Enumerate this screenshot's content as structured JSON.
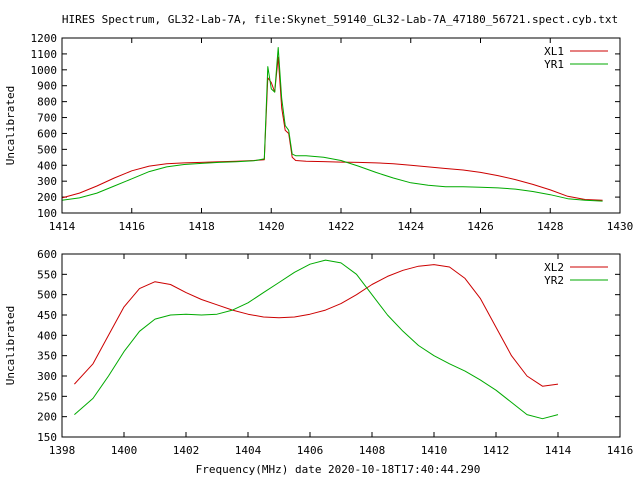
{
  "colors": {
    "red": "#cc0000",
    "green": "#00aa00",
    "axis": "#000000",
    "background": "#ffffff"
  },
  "title": "HIRES Spectrum, GL32-Lab-7A, file:Skynet_59140_GL32-Lab-7A_47180_56721.spect.cyb.txt",
  "footer": "Frequency(MHz) date 2020-10-18T17:40:44.290",
  "chart_data": [
    {
      "type": "line",
      "ylabel": "Uncalibrated",
      "xlim": [
        1414,
        1430
      ],
      "ylim": [
        100,
        1200
      ],
      "xticks": [
        1414,
        1416,
        1418,
        1420,
        1422,
        1424,
        1426,
        1428,
        1430
      ],
      "yticks": [
        100,
        200,
        300,
        400,
        500,
        600,
        700,
        800,
        900,
        1000,
        1100,
        1200
      ],
      "legend": "top-right",
      "series": [
        {
          "name": "XL1",
          "color": "red",
          "x": [
            1414.0,
            1414.5,
            1415.0,
            1415.5,
            1416.0,
            1416.5,
            1417.0,
            1417.5,
            1418.0,
            1418.5,
            1419.0,
            1419.5,
            1419.8,
            1419.9,
            1420.0,
            1420.1,
            1420.2,
            1420.3,
            1420.4,
            1420.5,
            1420.6,
            1420.7,
            1421.0,
            1421.5,
            1422.0,
            1422.5,
            1423.0,
            1423.5,
            1424.0,
            1424.5,
            1425.0,
            1425.5,
            1426.0,
            1426.5,
            1427.0,
            1427.5,
            1428.0,
            1428.5,
            1429.0,
            1429.5
          ],
          "y": [
            195,
            225,
            270,
            320,
            365,
            395,
            410,
            415,
            418,
            422,
            425,
            430,
            435,
            950,
            920,
            860,
            1080,
            760,
            620,
            600,
            450,
            430,
            425,
            423,
            420,
            418,
            415,
            410,
            400,
            390,
            380,
            370,
            355,
            335,
            310,
            280,
            245,
            205,
            185,
            180
          ]
        },
        {
          "name": "YR1",
          "color": "green",
          "x": [
            1414.0,
            1414.5,
            1415.0,
            1415.5,
            1416.0,
            1416.5,
            1417.0,
            1417.5,
            1418.0,
            1418.5,
            1419.0,
            1419.5,
            1419.8,
            1419.9,
            1420.0,
            1420.1,
            1420.2,
            1420.3,
            1420.4,
            1420.5,
            1420.6,
            1420.7,
            1421.0,
            1421.5,
            1422.0,
            1422.5,
            1423.0,
            1423.5,
            1424.0,
            1424.5,
            1425.0,
            1425.5,
            1426.0,
            1426.5,
            1427.0,
            1427.5,
            1428.0,
            1428.5,
            1429.0,
            1429.5
          ],
          "y": [
            180,
            195,
            225,
            270,
            315,
            360,
            390,
            405,
            412,
            418,
            422,
            428,
            440,
            1020,
            880,
            860,
            1140,
            820,
            650,
            620,
            470,
            460,
            460,
            450,
            430,
            395,
            355,
            320,
            290,
            275,
            265,
            265,
            262,
            258,
            250,
            235,
            215,
            190,
            180,
            175
          ]
        }
      ]
    },
    {
      "type": "line",
      "ylabel": "Uncalibrated",
      "xlim": [
        1398,
        1416
      ],
      "ylim": [
        150,
        600
      ],
      "xticks": [
        1398,
        1400,
        1402,
        1404,
        1406,
        1408,
        1410,
        1412,
        1414,
        1416
      ],
      "yticks": [
        150,
        200,
        250,
        300,
        350,
        400,
        450,
        500,
        550,
        600
      ],
      "legend": "top-right",
      "series": [
        {
          "name": "XL2",
          "color": "red",
          "x": [
            1398.4,
            1399.0,
            1399.5,
            1400.0,
            1400.5,
            1401.0,
            1401.5,
            1402.0,
            1402.5,
            1403.0,
            1403.5,
            1404.0,
            1404.5,
            1405.0,
            1405.5,
            1406.0,
            1406.5,
            1407.0,
            1407.5,
            1408.0,
            1408.5,
            1409.0,
            1409.5,
            1410.0,
            1410.5,
            1411.0,
            1411.5,
            1412.0,
            1412.5,
            1413.0,
            1413.5,
            1414.0
          ],
          "y": [
            280,
            330,
            400,
            470,
            515,
            532,
            525,
            505,
            488,
            475,
            462,
            452,
            445,
            443,
            445,
            452,
            462,
            478,
            500,
            525,
            545,
            560,
            570,
            574,
            568,
            540,
            490,
            420,
            350,
            300,
            275,
            280
          ]
        },
        {
          "name": "YR2",
          "color": "green",
          "x": [
            1398.4,
            1399.0,
            1399.5,
            1400.0,
            1400.5,
            1401.0,
            1401.5,
            1402.0,
            1402.5,
            1403.0,
            1403.5,
            1404.0,
            1404.5,
            1405.0,
            1405.5,
            1406.0,
            1406.5,
            1407.0,
            1407.5,
            1408.0,
            1408.5,
            1409.0,
            1409.5,
            1410.0,
            1410.5,
            1411.0,
            1411.5,
            1412.0,
            1412.5,
            1413.0,
            1413.5,
            1414.0
          ],
          "y": [
            205,
            245,
            300,
            360,
            410,
            440,
            450,
            452,
            450,
            452,
            462,
            480,
            505,
            530,
            555,
            575,
            585,
            578,
            550,
            500,
            450,
            410,
            375,
            350,
            330,
            312,
            290,
            265,
            235,
            205,
            195,
            205
          ]
        }
      ]
    }
  ]
}
